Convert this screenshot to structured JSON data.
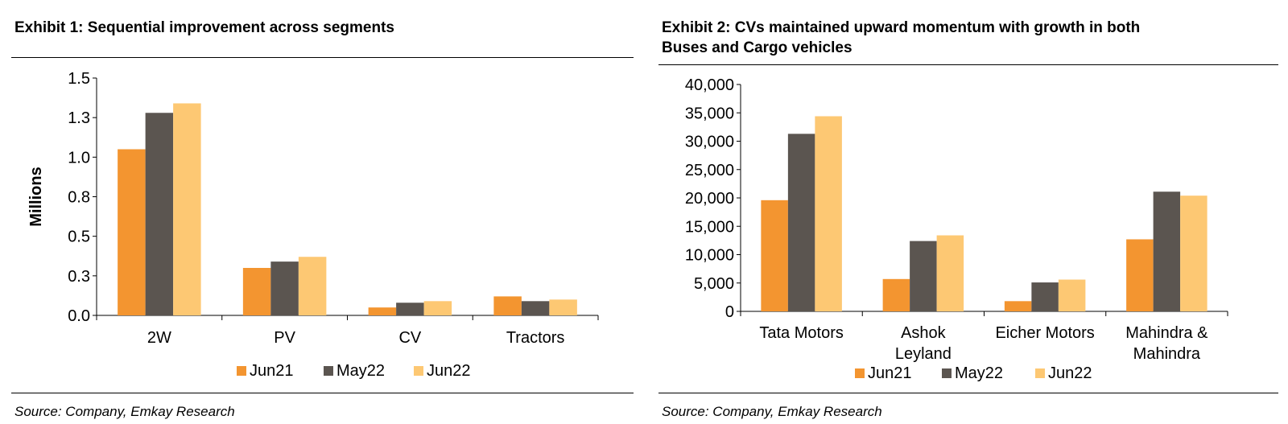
{
  "colors": {
    "Jun21": "#F39530",
    "May22": "#5B5550",
    "Jun22": "#FDC873"
  },
  "exhibits": [
    {
      "title": "Exhibit 1: Sequential improvement across segments",
      "source": "Source: Company, Emkay Research",
      "chart_data": {
        "type": "bar",
        "categories": [
          "2W",
          "PV",
          "CV",
          "Tractors"
        ],
        "series": [
          {
            "name": "Jun21",
            "values": [
              1.05,
              0.3,
              0.05,
              0.12
            ]
          },
          {
            "name": "May22",
            "values": [
              1.28,
              0.34,
              0.08,
              0.09
            ]
          },
          {
            "name": "Jun22",
            "values": [
              1.34,
              0.37,
              0.09,
              0.1
            ]
          }
        ],
        "ylabel": "Millions",
        "ylim": [
          0,
          1.5
        ],
        "yticks": [
          0,
          0.25,
          0.5,
          0.75,
          1.0,
          1.25,
          1.5
        ],
        "yticklabels": [
          "0.0",
          "0.3",
          "0.5",
          "0.8",
          "1.0",
          "1.3",
          "1.5"
        ],
        "legend": "bottom",
        "grid": false
      }
    },
    {
      "title_lines": [
        "Exhibit 2: CVs maintained upward momentum with growth in both",
        "Buses and Cargo vehicles"
      ],
      "source": "Source: Company, Emkay Research",
      "chart_data": {
        "type": "bar",
        "categories": [
          "Tata Motors",
          "Ashok Leyland",
          "Eicher Motors",
          "Mahindra & Mahindra"
        ],
        "category_lines": [
          [
            "Tata Motors"
          ],
          [
            "Ashok",
            "Leyland"
          ],
          [
            "Eicher Motors"
          ],
          [
            "Mahindra &",
            "Mahindra"
          ]
        ],
        "series": [
          {
            "name": "Jun21",
            "values": [
              19600,
              5700,
              1800,
              12700
            ]
          },
          {
            "name": "May22",
            "values": [
              31300,
              12400,
              5100,
              21100
            ]
          },
          {
            "name": "Jun22",
            "values": [
              34400,
              13400,
              5600,
              20400
            ]
          }
        ],
        "ylim": [
          0,
          40000
        ],
        "yticks": [
          0,
          5000,
          10000,
          15000,
          20000,
          25000,
          30000,
          35000,
          40000
        ],
        "yticklabels": [
          "0",
          "5,000",
          "10,000",
          "15,000",
          "20,000",
          "25,000",
          "30,000",
          "35,000",
          "40,000"
        ],
        "legend": "bottom",
        "grid": false
      }
    }
  ]
}
